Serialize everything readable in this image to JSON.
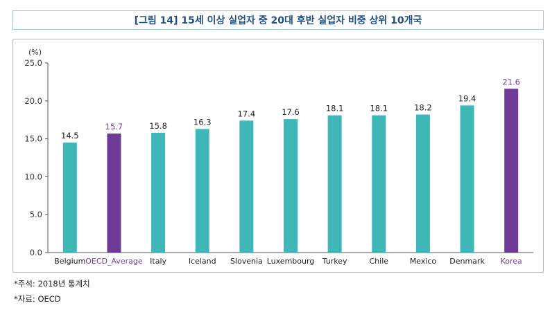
{
  "title": "[그림 14] 15세 이상 실업자 중 20대 후반 실업자 비중 상위 10개국",
  "notes": {
    "note1": "*주석: 2018년 통계치",
    "note2": "*자료: OECD"
  },
  "colors": {
    "default_bar": "#3fb7b9",
    "highlight_bar": "#6f3a96",
    "highlight_label": "#7a3ea6",
    "title": "#1f4f86"
  },
  "chart_data": {
    "type": "bar",
    "unit_label": "(%)",
    "categories": [
      "Belgium",
      "OECD_Average",
      "Italy",
      "Iceland",
      "Slovenia",
      "Luxembourg",
      "Turkey",
      "Chile",
      "Mexico",
      "Denmark",
      "Korea"
    ],
    "values": [
      14.5,
      15.7,
      15.8,
      16.3,
      17.4,
      17.6,
      18.1,
      18.1,
      18.2,
      19.4,
      21.6
    ],
    "value_labels": [
      "14.5",
      "15.7",
      "15.8",
      "16.3",
      "17.4",
      "17.6",
      "18.1",
      "18.1",
      "18.2",
      "19.4",
      "21.6"
    ],
    "highlighted": [
      "OECD_Average",
      "Korea"
    ],
    "ylim": [
      0,
      25
    ],
    "yticks": [
      "0.0",
      "5.0",
      "10.0",
      "15.0",
      "20.0",
      "25.0"
    ],
    "grid": false
  }
}
